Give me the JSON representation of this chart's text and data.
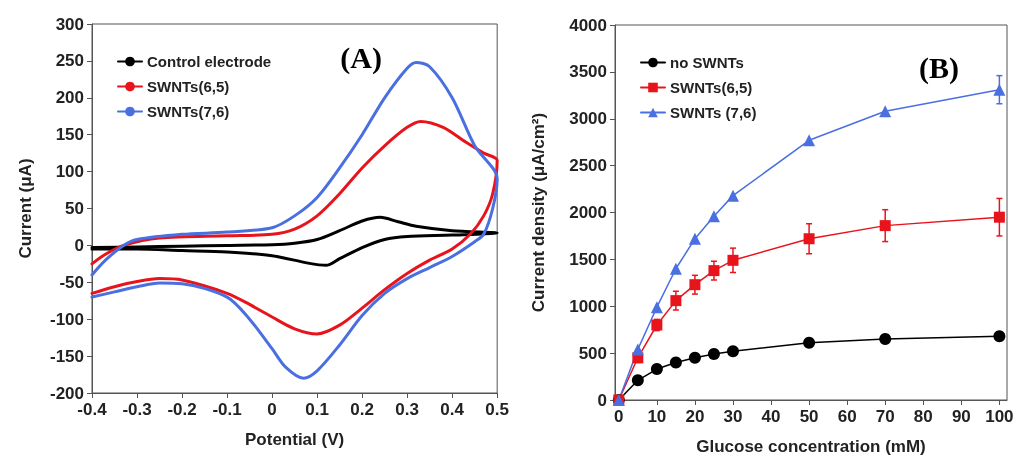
{
  "chart_data": [
    {
      "type": "line",
      "xlabel": "Potential (V)",
      "ylabel": "Current (μA)",
      "annotations": [
        "(A)"
      ],
      "xlim": [
        -0.4,
        0.5
      ],
      "xticks": [
        -0.4,
        -0.3,
        -0.2,
        -0.1,
        0,
        0.1,
        0.2,
        0.3,
        0.4,
        0.5
      ],
      "ylim": [
        -200,
        300
      ],
      "yticks": [
        -200,
        -150,
        -100,
        -50,
        0,
        50,
        100,
        150,
        200,
        250,
        300
      ],
      "grid": false,
      "legend": "top left",
      "marker": "none",
      "series": [
        {
          "name": "Control electrode",
          "color": "#000000",
          "x": [
            -0.4,
            -0.3,
            -0.2,
            -0.1,
            0,
            0.05,
            0.1,
            0.15,
            0.2,
            0.24,
            0.28,
            0.32,
            0.4,
            0.5,
            0.4,
            0.3,
            0.25,
            0.2,
            0.15,
            0.12,
            0.08,
            0,
            -0.1,
            -0.2,
            -0.3,
            -0.4
          ],
          "values": [
            -3,
            -2,
            -1,
            0,
            1,
            3,
            8,
            20,
            33,
            38,
            32,
            26,
            20,
            17,
            14,
            12,
            8,
            -3,
            -18,
            -27,
            -24,
            -14,
            -9,
            -7,
            -5,
            -5
          ]
        },
        {
          "name": "SWNTs(6,5)",
          "color": "#e8141c",
          "x": [
            -0.4,
            -0.37,
            -0.33,
            -0.25,
            -0.1,
            0,
            0.05,
            0.1,
            0.15,
            0.2,
            0.25,
            0.3,
            0.33,
            0.38,
            0.43,
            0.47,
            0.5,
            0.49,
            0.47,
            0.44,
            0.4,
            0.35,
            0.3,
            0.25,
            0.2,
            0.15,
            0.1,
            0.05,
            0,
            -0.05,
            -0.1,
            -0.2,
            -0.25,
            -0.3,
            -0.35,
            -0.4
          ],
          "values": [
            -25,
            -12,
            0,
            10,
            13,
            15,
            22,
            40,
            70,
            105,
            135,
            160,
            168,
            160,
            140,
            125,
            115,
            70,
            40,
            15,
            -5,
            -20,
            -38,
            -60,
            -85,
            -108,
            -120,
            -113,
            -97,
            -80,
            -65,
            -47,
            -45,
            -49,
            -56,
            -65
          ]
        },
        {
          "name": "SWNTs(7,6)",
          "color": "#4a6fe0",
          "x": [
            -0.4,
            -0.37,
            -0.33,
            -0.3,
            -0.2,
            -0.1,
            0,
            0.05,
            0.1,
            0.15,
            0.2,
            0.25,
            0.3,
            0.32,
            0.35,
            0.4,
            0.45,
            0.5,
            0.49,
            0.47,
            0.45,
            0.4,
            0.35,
            0.3,
            0.25,
            0.2,
            0.15,
            0.1,
            0.07,
            0.03,
            0,
            -0.05,
            -0.1,
            -0.2,
            -0.25,
            -0.3,
            -0.35,
            -0.4
          ],
          "values": [
            -40,
            -20,
            0,
            8,
            15,
            18,
            24,
            40,
            65,
            105,
            150,
            200,
            240,
            248,
            242,
            200,
            135,
            90,
            50,
            15,
            5,
            -15,
            -30,
            -45,
            -65,
            -95,
            -135,
            -170,
            -180,
            -165,
            -140,
            -100,
            -70,
            -52,
            -51,
            -56,
            -63,
            -70
          ]
        }
      ]
    },
    {
      "type": "line",
      "xlabel": "Glucose concentration (mM)",
      "ylabel": "Current density (μA/cm²)",
      "annotations": [
        "(B)"
      ],
      "x": [
        0,
        5,
        10,
        15,
        20,
        25,
        30,
        50,
        70,
        100
      ],
      "xlim": [
        -1,
        102
      ],
      "xticks": [
        0,
        10,
        20,
        30,
        40,
        50,
        60,
        70,
        80,
        90,
        100
      ],
      "ylim": [
        0,
        4000
      ],
      "yticks": [
        0,
        500,
        1000,
        1500,
        2000,
        2500,
        3000,
        3500,
        4000
      ],
      "grid": false,
      "legend": "top left",
      "series": [
        {
          "name": "no SWNTs",
          "color": "#000000",
          "marker": "circle",
          "values": [
            0,
            210,
            330,
            400,
            450,
            490,
            520,
            610,
            650,
            680
          ]
        },
        {
          "name": "SWNTs(6,5)",
          "color": "#e8141c",
          "marker": "square",
          "values": [
            0,
            450,
            800,
            1060,
            1230,
            1380,
            1490,
            1720,
            1860,
            1950
          ],
          "errors": [
            null,
            50,
            60,
            100,
            100,
            100,
            130,
            160,
            170,
            200
          ]
        },
        {
          "name": "SWNTs (7,6)",
          "color": "#4a6fe0",
          "marker": "triangle",
          "values": [
            0,
            540,
            990,
            1400,
            1720,
            1960,
            2180,
            2770,
            3080,
            3310
          ],
          "errors": [
            null,
            null,
            null,
            null,
            null,
            null,
            null,
            null,
            null,
            150
          ]
        }
      ]
    }
  ]
}
